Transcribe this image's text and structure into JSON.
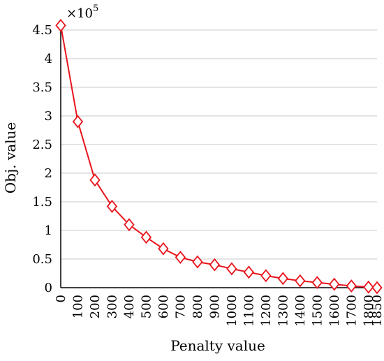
{
  "chart_data": {
    "type": "line",
    "title": "",
    "xlabel": "Penalty value",
    "ylabel": "Obj. value",
    "y_multiplier_label": "×10",
    "y_multiplier_exponent": "5",
    "x": [
      0,
      100,
      200,
      300,
      400,
      500,
      600,
      700,
      800,
      900,
      1000,
      1100,
      1200,
      1300,
      1400,
      1500,
      1600,
      1700,
      1800,
      1850
    ],
    "x_tick_labels": [
      "0",
      "100",
      "200",
      "300",
      "400",
      "500",
      "600",
      "700",
      "800",
      "900",
      "1000",
      "1100",
      "1200",
      "1300",
      "1400",
      "1500",
      "1600",
      "1700",
      "1800",
      "1850"
    ],
    "y_ticks": [
      0,
      0.5,
      1,
      1.5,
      2,
      2.5,
      3,
      3.5,
      4,
      4.5
    ],
    "y_tick_labels": [
      "0",
      "0.5",
      "1",
      "1.5",
      "2",
      "2.5",
      "3",
      "3.5",
      "4",
      "4.5"
    ],
    "ylim": [
      0,
      4.5
    ],
    "grid": true,
    "series": [
      {
        "marker": "diamond",
        "color": "#e8141c",
        "values": [
          4.58,
          2.9,
          1.88,
          1.42,
          1.1,
          0.88,
          0.68,
          0.53,
          0.45,
          0.4,
          0.33,
          0.27,
          0.21,
          0.16,
          0.12,
          0.09,
          0.06,
          0.03,
          0.01,
          0.0
        ]
      }
    ]
  }
}
